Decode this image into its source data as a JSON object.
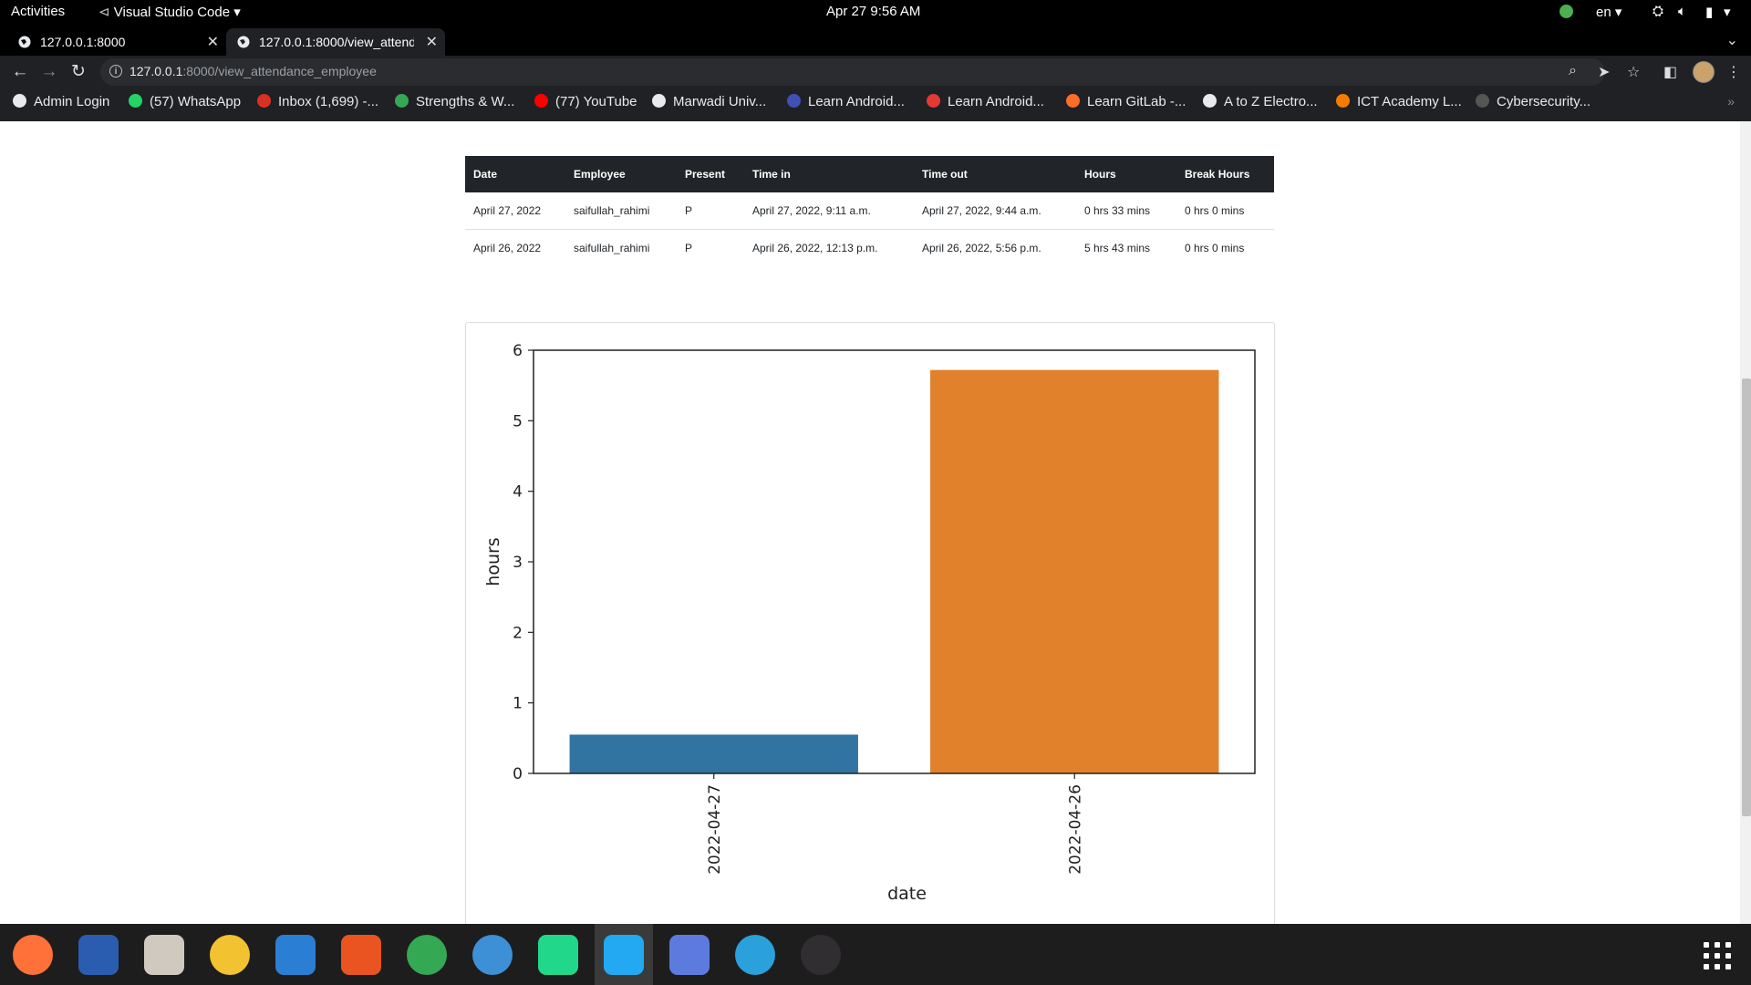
{
  "topbar": {
    "activities": "Activities",
    "app_name": "Visual Studio Code",
    "datetime": "Apr 27  9:56 AM",
    "language": "en"
  },
  "tabs": [
    {
      "title": "127.0.0.1:8000"
    },
    {
      "title": "127.0.0.1:8000/view_attendance_employee"
    }
  ],
  "omnibox": {
    "url_host": "127.0.0.1",
    "url_rest": ":8000/view_attendance_employee"
  },
  "bookmarks": [
    {
      "label": "Admin Login",
      "color": "#e8eaed"
    },
    {
      "label": "(57) WhatsApp",
      "color": "#25d366"
    },
    {
      "label": "Inbox (1,699) -...",
      "color": "#d93025"
    },
    {
      "label": "Strengths & W...",
      "color": "#34a853"
    },
    {
      "label": "(77) YouTube",
      "color": "#ff0000"
    },
    {
      "label": "Marwadi Univ...",
      "color": "#e8eaed"
    },
    {
      "label": "Learn Android...",
      "color": "#3f51b5"
    },
    {
      "label": "Learn Android...",
      "color": "#e53935"
    },
    {
      "label": "Learn GitLab -...",
      "color": "#fc6d26"
    },
    {
      "label": "A to Z Electro...",
      "color": "#e8eaed"
    },
    {
      "label": "ICT Academy L...",
      "color": "#f57c00"
    },
    {
      "label": "Cybersecurity...",
      "color": "#555555"
    }
  ],
  "table": {
    "headers": [
      "Date",
      "Employee",
      "Present",
      "Time in",
      "Time out",
      "Hours",
      "Break Hours"
    ],
    "rows": [
      [
        "April 27, 2022",
        "saifullah_rahimi",
        "P",
        "April 27, 2022, 9:11 a.m.",
        "April 27, 2022, 9:44 a.m.",
        "0 hrs 33 mins",
        "0 hrs 0 mins"
      ],
      [
        "April 26, 2022",
        "saifullah_rahimi",
        "P",
        "April 26, 2022, 12:13 p.m.",
        "April 26, 2022, 5:56 p.m.",
        "5 hrs 43 mins",
        "0 hrs 0 mins"
      ]
    ]
  },
  "chart_data": {
    "type": "bar",
    "categories": [
      "2022-04-27",
      "2022-04-26"
    ],
    "values": [
      0.55,
      5.72
    ],
    "colors": [
      "#3274a1",
      "#e1812c"
    ],
    "xlabel": "date",
    "ylabel": "hours",
    "ylim": [
      0,
      6
    ],
    "yticks": [
      0,
      1,
      2,
      3,
      4,
      5,
      6
    ],
    "grid": false,
    "legend": "none"
  },
  "dock": [
    {
      "icon": "firefox-icon",
      "color": "#ff7139"
    },
    {
      "icon": "thunderbird-icon",
      "color": "#2a5db0"
    },
    {
      "icon": "files-icon",
      "color": "#cfc9c0"
    },
    {
      "icon": "rhythmbox-icon",
      "color": "#f2c230"
    },
    {
      "icon": "writer-icon",
      "color": "#2a7fd4"
    },
    {
      "icon": "software-icon",
      "color": "#e95420"
    },
    {
      "icon": "chrome-icon",
      "color": "#34a853"
    },
    {
      "icon": "help-icon",
      "color": "#3d8fd6"
    },
    {
      "icon": "pycharm-icon",
      "color": "#21d789"
    },
    {
      "icon": "vscode-icon",
      "color": "#23a9f2"
    },
    {
      "icon": "screenshot-icon",
      "color": "#5d7bde"
    },
    {
      "icon": "telegram-icon",
      "color": "#2aa1da"
    },
    {
      "icon": "obs-icon",
      "color": "#302e31"
    }
  ]
}
